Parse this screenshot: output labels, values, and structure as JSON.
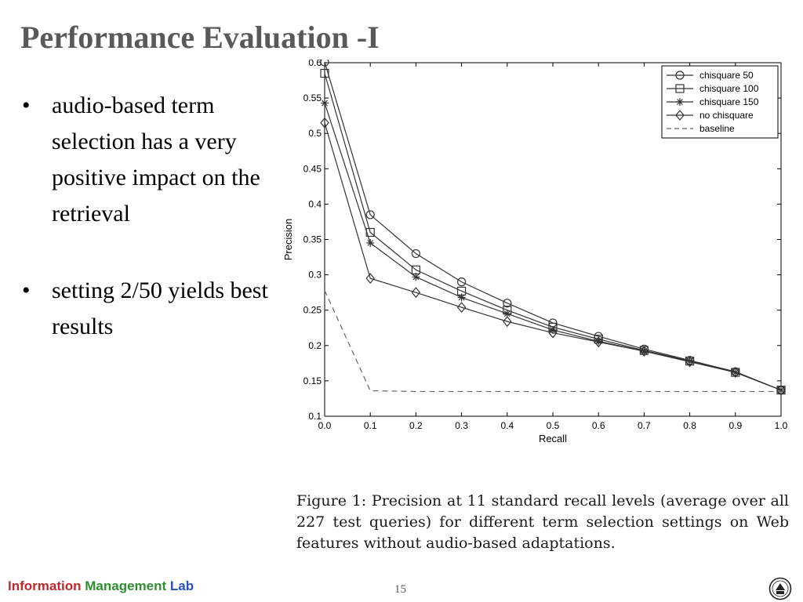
{
  "slide": {
    "title": "Performance Evaluation -I",
    "bullets": [
      {
        "text": "audio-based term selection has a very positive impact on the retrieval"
      },
      {
        "text": "setting 2/50 yields best results"
      }
    ],
    "caption": "Figure 1: Precision at 11 standard recall levels (average over all 227 test queries) for different term selection settings on Web features without audio-based adaptations.",
    "footer": {
      "lab_word1": "Information",
      "lab_word2": "Management",
      "lab_word3": "Lab"
    },
    "page_number": "15"
  },
  "chart_data": {
    "type": "line",
    "title": "",
    "xlabel": "Recall",
    "ylabel": "Precision",
    "xlim": [
      0.0,
      1.0
    ],
    "ylim": [
      0.1,
      0.6
    ],
    "x": [
      0.0,
      0.1,
      0.2,
      0.3,
      0.4,
      0.5,
      0.6,
      0.7,
      0.8,
      0.9,
      1.0
    ],
    "x_ticks": [
      "0.0",
      "0.1",
      "0.2",
      "0.3",
      "0.4",
      "0.5",
      "0.6",
      "0.7",
      "0.8",
      "0.9",
      "1.0"
    ],
    "y_ticks": [
      {
        "value": 0.1,
        "label": "0.1"
      },
      {
        "value": 0.15,
        "label": "0.15"
      },
      {
        "value": 0.2,
        "label": "0.2"
      },
      {
        "value": 0.25,
        "label": "0.25"
      },
      {
        "value": 0.3,
        "label": "0.3"
      },
      {
        "value": 0.35,
        "label": "0.35"
      },
      {
        "value": 0.4,
        "label": "0.4"
      },
      {
        "value": 0.45,
        "label": "0.45"
      },
      {
        "value": 0.5,
        "label": "0.5"
      },
      {
        "value": 0.55,
        "label": "0.55"
      },
      {
        "value": 0.6,
        "label": "0.6"
      }
    ],
    "grid": false,
    "legend_position": "top-right",
    "series": [
      {
        "name": "chisquare 50",
        "marker": "circle",
        "dashed": false,
        "values": [
          0.601,
          0.385,
          0.33,
          0.29,
          0.26,
          0.232,
          0.213,
          0.195,
          0.179,
          0.163,
          0.137
        ]
      },
      {
        "name": "chisquare 100",
        "marker": "square",
        "dashed": false,
        "values": [
          0.585,
          0.36,
          0.307,
          0.277,
          0.25,
          0.226,
          0.209,
          0.193,
          0.178,
          0.162,
          0.137
        ]
      },
      {
        "name": "chisquare 150",
        "marker": "star",
        "dashed": false,
        "values": [
          0.543,
          0.345,
          0.297,
          0.268,
          0.245,
          0.222,
          0.206,
          0.192,
          0.178,
          0.162,
          0.137
        ]
      },
      {
        "name": "no chisquare",
        "marker": "diamond",
        "dashed": false,
        "values": [
          0.515,
          0.295,
          0.275,
          0.254,
          0.234,
          0.218,
          0.205,
          0.192,
          0.177,
          0.162,
          0.137
        ]
      },
      {
        "name": "baseline",
        "marker": "none",
        "dashed": true,
        "values": [
          0.278,
          0.136,
          0.135,
          0.135,
          0.135,
          0.135,
          0.135,
          0.135,
          0.135,
          0.135,
          0.135
        ]
      }
    ],
    "colors": {
      "line": "#333333",
      "axis": "#000000",
      "baseline": "#666666"
    }
  }
}
